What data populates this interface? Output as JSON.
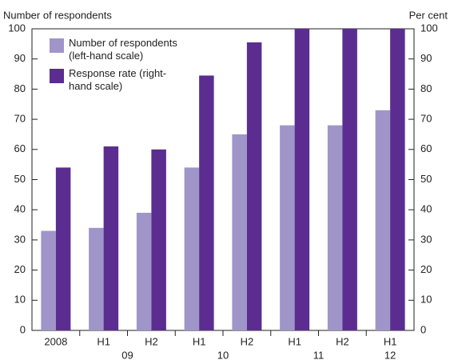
{
  "chart_data": {
    "type": "bar",
    "y_label": "Number of respondents",
    "y2_label": "Per cent",
    "categories": [
      "2008",
      "H1",
      "H2",
      "H1",
      "H2",
      "H1",
      "H2",
      "H1"
    ],
    "groups": [
      {
        "label": "09",
        "members": [
          1,
          2
        ]
      },
      {
        "label": "10",
        "members": [
          3,
          4
        ]
      },
      {
        "label": "11",
        "members": [
          5,
          6
        ]
      },
      {
        "label": "12",
        "members": [
          7
        ]
      }
    ],
    "series": [
      {
        "name": "Number of respondents (left-hand scale)",
        "color": "#a095c9",
        "values": [
          33,
          34,
          39,
          54,
          65,
          68,
          68,
          73
        ]
      },
      {
        "name": "Response rate (right-hand scale)",
        "color": "#5b2d90",
        "axis": "y2",
        "values": [
          54,
          61,
          60,
          84.5,
          95.5,
          100,
          100,
          100
        ]
      }
    ],
    "ylim": [
      0,
      100
    ],
    "yticks": [
      0,
      10,
      20,
      30,
      40,
      50,
      60,
      70,
      80,
      90,
      100
    ],
    "y2lim": [
      0,
      100
    ],
    "y2ticks": [
      0,
      10,
      20,
      30,
      40,
      50,
      60,
      70,
      80,
      90,
      100
    ],
    "grid": false,
    "legend": "top-left"
  }
}
